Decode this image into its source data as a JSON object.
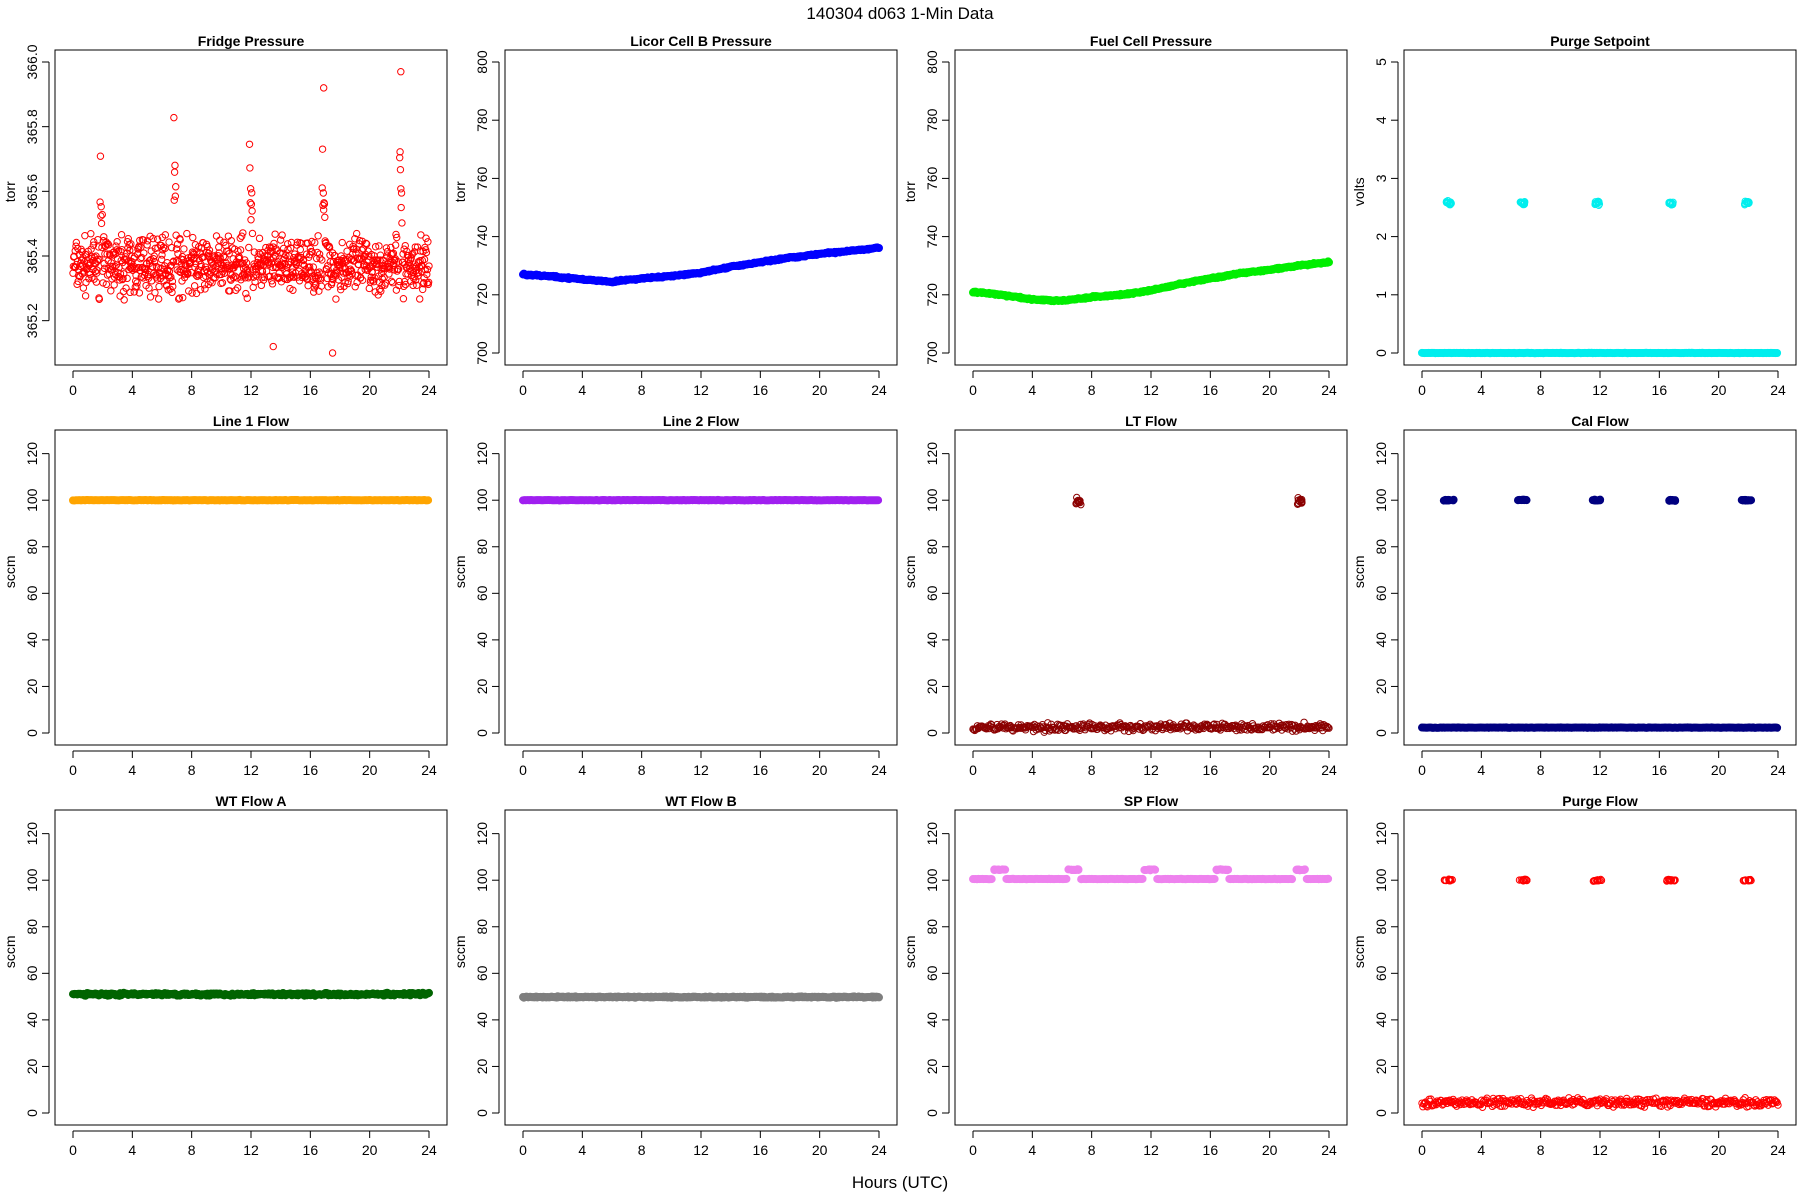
{
  "figure": {
    "title": "140304    d063    1-Min Data",
    "xlabel": "Hours (UTC)"
  },
  "x_ticks": [
    0,
    4,
    8,
    12,
    16,
    20,
    24
  ],
  "chart_data": [
    {
      "type": "scatter",
      "title": "Fridge Pressure",
      "ylabel": "torr",
      "color": "#ff0000",
      "marker": "open",
      "xlim": [
        0,
        24
      ],
      "ylim": [
        365.1,
        366.0
      ],
      "yticks": [
        365.2,
        365.4,
        365.6,
        365.8,
        366.0
      ],
      "series": [
        {
          "x_start": 0,
          "x_end": 24,
          "pattern": "noise",
          "base": 365.37,
          "amp": 0.12,
          "spikes": [
            1.8,
            6.8,
            11.9,
            16.8,
            22.0
          ],
          "spike_height": 0.48,
          "extremes": [
            [
              22.1,
              365.97
            ],
            [
              16.9,
              365.92
            ],
            [
              13.5,
              365.12
            ],
            [
              17.5,
              365.1
            ]
          ]
        }
      ]
    },
    {
      "type": "scatter",
      "title": "Licor Cell B Pressure",
      "ylabel": "torr",
      "color": "#0000ff",
      "marker": "filled",
      "xlim": [
        0,
        24
      ],
      "ylim": [
        700,
        800
      ],
      "yticks": [
        700,
        720,
        740,
        760,
        780,
        800
      ],
      "series": [
        {
          "pattern": "curve",
          "points": [
            [
              0,
              727
            ],
            [
              2,
              726.3
            ],
            [
              4,
              725.3
            ],
            [
              6,
              724.5
            ],
            [
              8,
              725.6
            ],
            [
              10,
              726.4
            ],
            [
              12,
              727.6
            ],
            [
              14,
              729.6
            ],
            [
              16,
              731.2
            ],
            [
              18,
              732.8
            ],
            [
              20,
              734.0
            ],
            [
              22,
              735.1
            ],
            [
              24,
              736.2
            ]
          ]
        }
      ]
    },
    {
      "type": "scatter",
      "title": "Fuel Cell Pressure",
      "ylabel": "torr",
      "color": "#00ee00",
      "marker": "filled",
      "xlim": [
        0,
        24
      ],
      "ylim": [
        700,
        800
      ],
      "yticks": [
        700,
        720,
        740,
        760,
        780,
        800
      ],
      "series": [
        {
          "pattern": "curve",
          "points": [
            [
              0,
              721
            ],
            [
              2,
              719.9
            ],
            [
              4,
              718.4
            ],
            [
              6,
              717.9
            ],
            [
              8,
              719.2
            ],
            [
              10,
              720.0
            ],
            [
              12,
              721.5
            ],
            [
              14,
              723.8
            ],
            [
              16,
              725.6
            ],
            [
              18,
              727.4
            ],
            [
              20,
              728.6
            ],
            [
              22,
              730.0
            ],
            [
              24,
              731.2
            ]
          ]
        }
      ]
    },
    {
      "type": "scatter",
      "title": "Purge Setpoint",
      "ylabel": "volts",
      "color": "#00eeee",
      "marker": "filled",
      "xlim": [
        0,
        24
      ],
      "ylim": [
        0,
        5
      ],
      "yticks": [
        0,
        1,
        2,
        3,
        4,
        5
      ],
      "series": [
        {
          "pattern": "flat",
          "value": 0,
          "x_start": 0,
          "x_end": 24
        },
        {
          "pattern": "clusters",
          "value": 2.58,
          "spread": 0.05,
          "at": [
            1.8,
            6.8,
            11.8,
            16.8,
            21.9
          ],
          "open": true
        }
      ]
    },
    {
      "type": "scatter",
      "title": "Line 1 Flow",
      "ylabel": "sccm",
      "color": "#ffa500",
      "marker": "filled",
      "xlim": [
        0,
        24
      ],
      "ylim": [
        0,
        125
      ],
      "yticks": [
        0,
        20,
        40,
        60,
        80,
        100,
        120
      ],
      "series": [
        {
          "pattern": "flat",
          "value": 100,
          "x_start": 0,
          "x_end": 24
        }
      ]
    },
    {
      "type": "scatter",
      "title": "Line 2 Flow",
      "ylabel": "sccm",
      "color": "#a020f0",
      "marker": "filled",
      "xlim": [
        0,
        24
      ],
      "ylim": [
        0,
        125
      ],
      "yticks": [
        0,
        20,
        40,
        60,
        80,
        100,
        120
      ],
      "series": [
        {
          "pattern": "flat",
          "value": 100,
          "x_start": 0,
          "x_end": 24
        }
      ]
    },
    {
      "type": "scatter",
      "title": "LT Flow",
      "ylabel": "sccm",
      "color": "#8b0000",
      "marker": "open",
      "xlim": [
        0,
        24
      ],
      "ylim": [
        0,
        125
      ],
      "yticks": [
        0,
        20,
        40,
        60,
        80,
        100,
        120
      ],
      "series": [
        {
          "pattern": "band",
          "base": 2.5,
          "amp": 2.4,
          "x_start": 0,
          "x_end": 24
        },
        {
          "pattern": "clusters",
          "value": 99.5,
          "spread": 2,
          "at": [
            7.1,
            22.0
          ],
          "open": true
        }
      ]
    },
    {
      "type": "scatter",
      "title": "Cal Flow",
      "ylabel": "sccm",
      "color": "#000080",
      "marker": "filled",
      "xlim": [
        0,
        24
      ],
      "ylim": [
        0,
        125
      ],
      "yticks": [
        0,
        20,
        40,
        60,
        80,
        100,
        120
      ],
      "series": [
        {
          "pattern": "flat",
          "value": 2.3,
          "x_start": 0,
          "x_end": 24
        },
        {
          "pattern": "clusters",
          "value": 100,
          "spread": 0.4,
          "at": [
            1.8,
            6.8,
            11.8,
            16.8,
            21.9
          ],
          "open": false,
          "wide": 0.7
        }
      ]
    },
    {
      "type": "scatter",
      "title": "WT Flow A",
      "ylabel": "sccm",
      "color": "#006400",
      "marker": "filled",
      "xlim": [
        0,
        24
      ],
      "ylim": [
        0,
        125
      ],
      "yticks": [
        0,
        20,
        40,
        60,
        80,
        100,
        120
      ],
      "series": [
        {
          "pattern": "band",
          "base": 51,
          "amp": 0.8,
          "x_start": 0,
          "x_end": 24
        }
      ]
    },
    {
      "type": "scatter",
      "title": "WT Flow B",
      "ylabel": "sccm",
      "color": "#7f7f7f",
      "marker": "filled",
      "xlim": [
        0,
        24
      ],
      "ylim": [
        0,
        125
      ],
      "yticks": [
        0,
        20,
        40,
        60,
        80,
        100,
        120
      ],
      "series": [
        {
          "pattern": "band",
          "base": 49.8,
          "amp": 0.4,
          "x_start": 0,
          "x_end": 24
        }
      ]
    },
    {
      "type": "scatter",
      "title": "SP Flow",
      "ylabel": "sccm",
      "color": "#ee82ee",
      "marker": "filled",
      "xlim": [
        0,
        24
      ],
      "ylim": [
        0,
        125
      ],
      "yticks": [
        0,
        20,
        40,
        60,
        80,
        100,
        120
      ],
      "series": [
        {
          "pattern": "flat",
          "value": 100.5,
          "x_start": 0,
          "x_end": 24,
          "gaps": [
            1.8,
            6.8,
            11.9,
            16.8,
            22.0
          ]
        },
        {
          "pattern": "clusters",
          "value": 104.5,
          "spread": 0.3,
          "at": [
            1.8,
            6.8,
            11.9,
            16.8,
            22.0
          ],
          "open": false,
          "wide": 0.8
        }
      ]
    },
    {
      "type": "scatter",
      "title": "Purge Flow",
      "ylabel": "sccm",
      "color": "#ff0000",
      "marker": "open",
      "xlim": [
        0,
        24
      ],
      "ylim": [
        0,
        125
      ],
      "yticks": [
        0,
        20,
        40,
        60,
        80,
        100,
        120
      ],
      "series": [
        {
          "pattern": "band",
          "base": 4.5,
          "amp": 2.6,
          "x_start": 0,
          "x_end": 24
        },
        {
          "pattern": "clusters",
          "value": 100,
          "spread": 0.6,
          "at": [
            1.8,
            6.8,
            11.8,
            16.8,
            21.9
          ],
          "open": true,
          "wide": 0.6
        }
      ]
    }
  ]
}
